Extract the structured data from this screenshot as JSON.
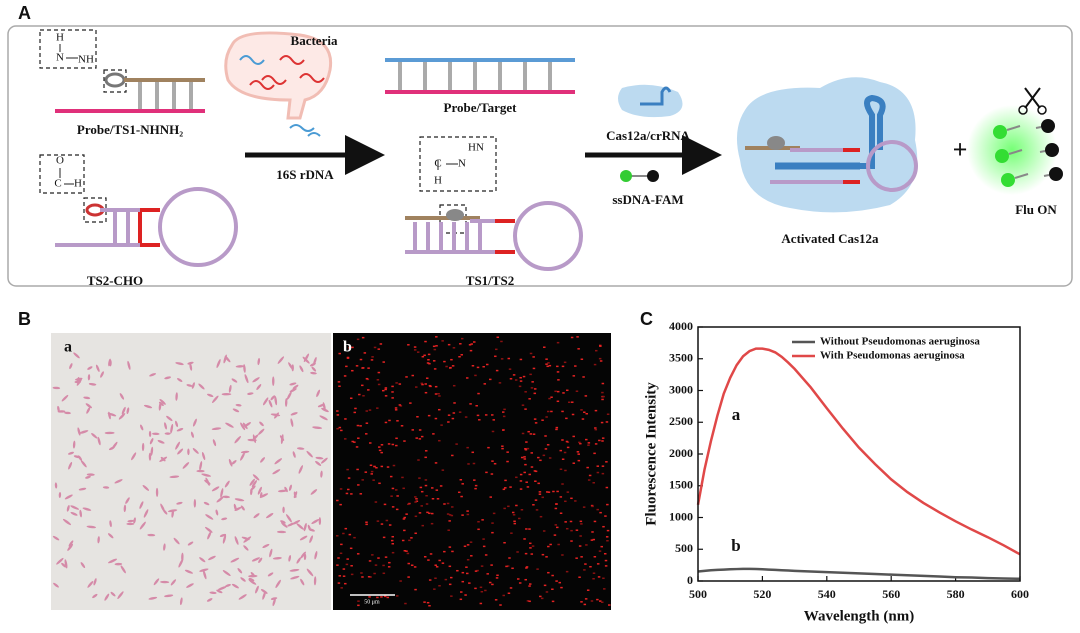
{
  "panel_labels": [
    "A",
    "B",
    "C"
  ],
  "scheme": {
    "hydrazine_atoms": [
      "H",
      "N",
      "NH"
    ],
    "aldehyde_atoms": [
      "O",
      "C",
      "H"
    ],
    "hydrazone_atoms": [
      "HN",
      "C",
      "N",
      "H"
    ],
    "probe_ts1": "Probe/TS1-NHNH₂",
    "ts2": "TS2-CHO",
    "bacteria": "Bacteria",
    "step1": "16S rDNA",
    "probe_target": "Probe/Target",
    "ts1_ts2": "TS1/TS2",
    "cas": "Cas12a/crRNA",
    "reporter": "ssDNA-FAM",
    "activated": "Activated Cas12a",
    "plus": "+",
    "flu_on": "Flu ON"
  },
  "microscopy": {
    "labels": [
      "a",
      "b"
    ],
    "scale_bar": "50 μm"
  },
  "chart_data": {
    "type": "line",
    "xlabel": "Wavelength (nm)",
    "ylabel": "Fluorescence Intensity",
    "x": [
      500,
      502,
      504,
      506,
      508,
      510,
      512,
      514,
      516,
      518,
      520,
      522,
      524,
      526,
      528,
      530,
      535,
      540,
      545,
      550,
      555,
      560,
      565,
      570,
      575,
      580,
      585,
      590,
      595,
      600
    ],
    "series": [
      {
        "name": "Without Pseudomonas aeruginosa",
        "color": "#555555",
        "values": [
          150,
          160,
          170,
          175,
          180,
          185,
          188,
          190,
          190,
          188,
          185,
          180,
          175,
          170,
          165,
          160,
          150,
          140,
          130,
          120,
          110,
          100,
          90,
          80,
          70,
          60,
          55,
          45,
          40,
          35
        ]
      },
      {
        "name": "With Pseudomonas aeruginosa",
        "color": "#e04848",
        "values": [
          1200,
          1750,
          2200,
          2600,
          2950,
          3200,
          3400,
          3540,
          3620,
          3660,
          3660,
          3640,
          3600,
          3530,
          3440,
          3340,
          3050,
          2720,
          2400,
          2100,
          1840,
          1600,
          1400,
          1230,
          1080,
          940,
          810,
          690,
          560,
          420
        ]
      }
    ],
    "annotations": [
      "a",
      "b"
    ],
    "xlim": [
      500,
      600
    ],
    "ylim": [
      0,
      4000
    ],
    "xticks": [
      500,
      520,
      540,
      560,
      580,
      600
    ],
    "yticks": [
      0,
      500,
      1000,
      1500,
      2000,
      2500,
      3000,
      3500,
      4000
    ],
    "legend": "upper right"
  }
}
